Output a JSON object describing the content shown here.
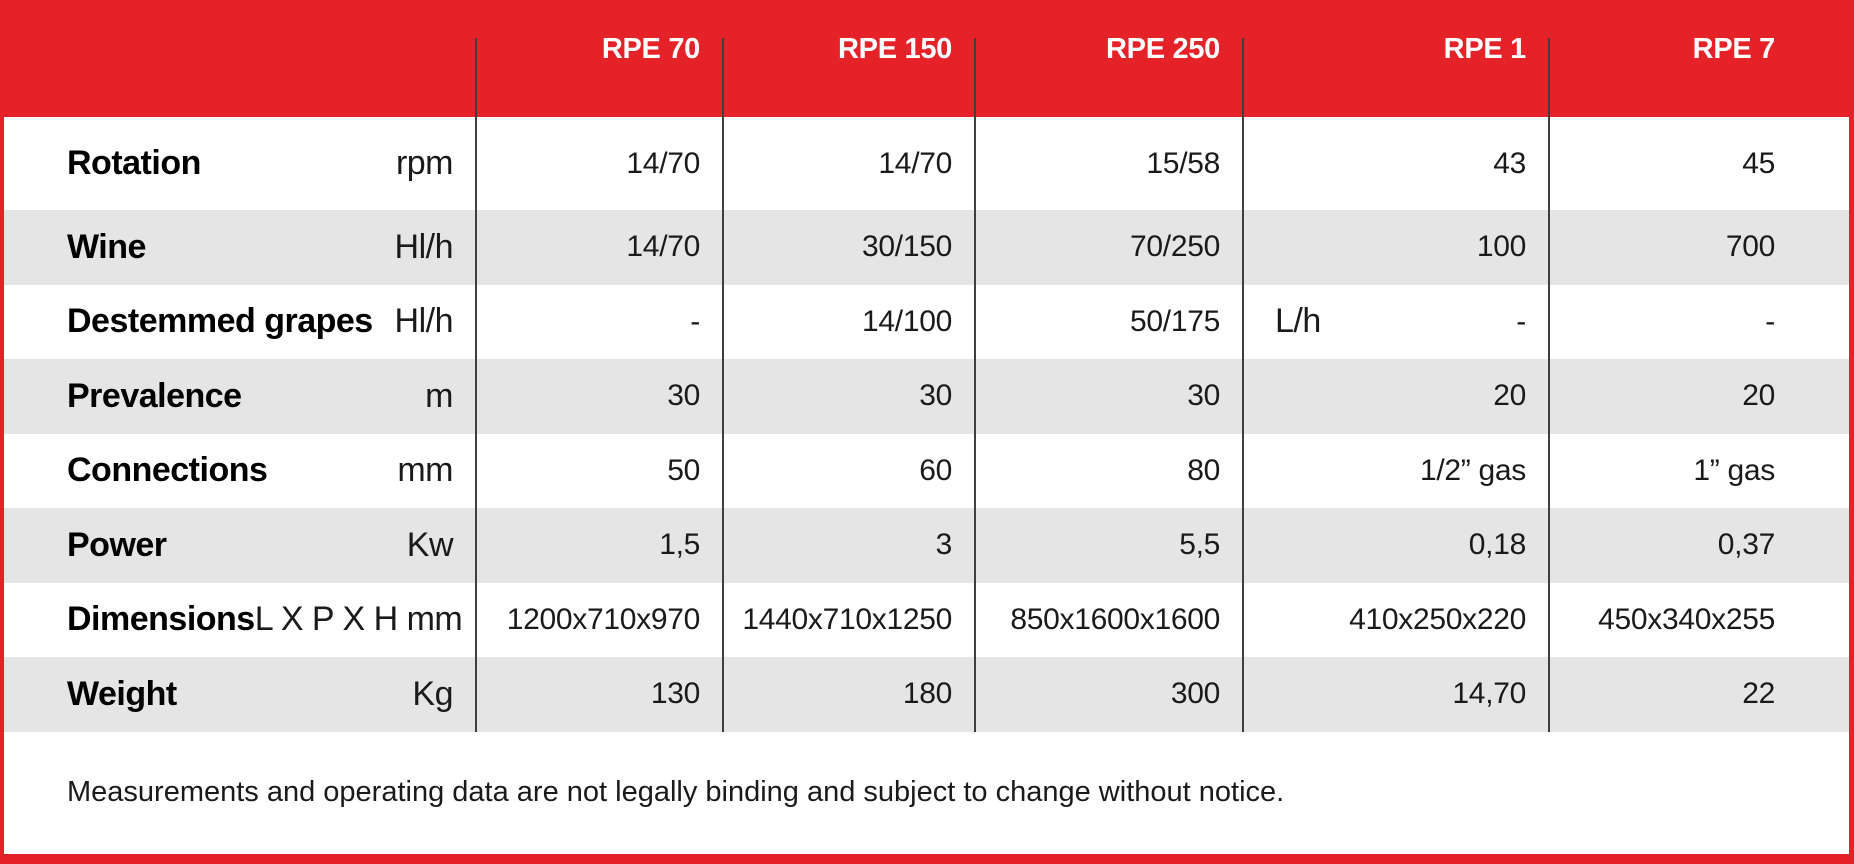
{
  "table": {
    "columns": [
      "RPE 70",
      "RPE 150",
      "RPE 250",
      "RPE 1",
      "RPE 7"
    ],
    "rows": [
      {
        "label": "Rotation",
        "unit": "rpm",
        "values": [
          "14/70",
          "14/70",
          "15/58",
          "43",
          "45"
        ]
      },
      {
        "label": "Wine",
        "unit": "Hl/h",
        "values": [
          "14/70",
          "30/150",
          "70/250",
          "100",
          "700"
        ]
      },
      {
        "label": "Destemmed grapes",
        "unit": "Hl/h",
        "values": [
          "-",
          "14/100",
          "50/175",
          "-",
          "-"
        ],
        "extra_unit_rpe1": "L/h"
      },
      {
        "label": "Prevalence",
        "unit": "m",
        "values": [
          "30",
          "30",
          "30",
          "20",
          "20"
        ]
      },
      {
        "label": "Connections",
        "unit": "mm",
        "values": [
          "50",
          "60",
          "80",
          "1/2” gas",
          "1” gas"
        ]
      },
      {
        "label": "Power",
        "unit": "Kw",
        "values": [
          "1,5",
          "3",
          "5,5",
          "0,18",
          "0,37"
        ]
      },
      {
        "label": "Dimensions",
        "unit": "L X P X H mm",
        "values": [
          "1200x710x970",
          "1440x710x1250",
          "850x1600x1600",
          "410x250x220",
          "450x340x255"
        ]
      },
      {
        "label": "Weight",
        "unit": "Kg",
        "values": [
          "130",
          "180",
          "300",
          "14,70",
          "22"
        ]
      }
    ],
    "footnote": "Measurements and operating data are not legally binding and subject to change without notice."
  },
  "colors": {
    "accent_red": "#e62229",
    "row_gray": "#e5e5e6",
    "line_dark": "#3f3f3f",
    "text_dark": "#1a1a1a"
  }
}
